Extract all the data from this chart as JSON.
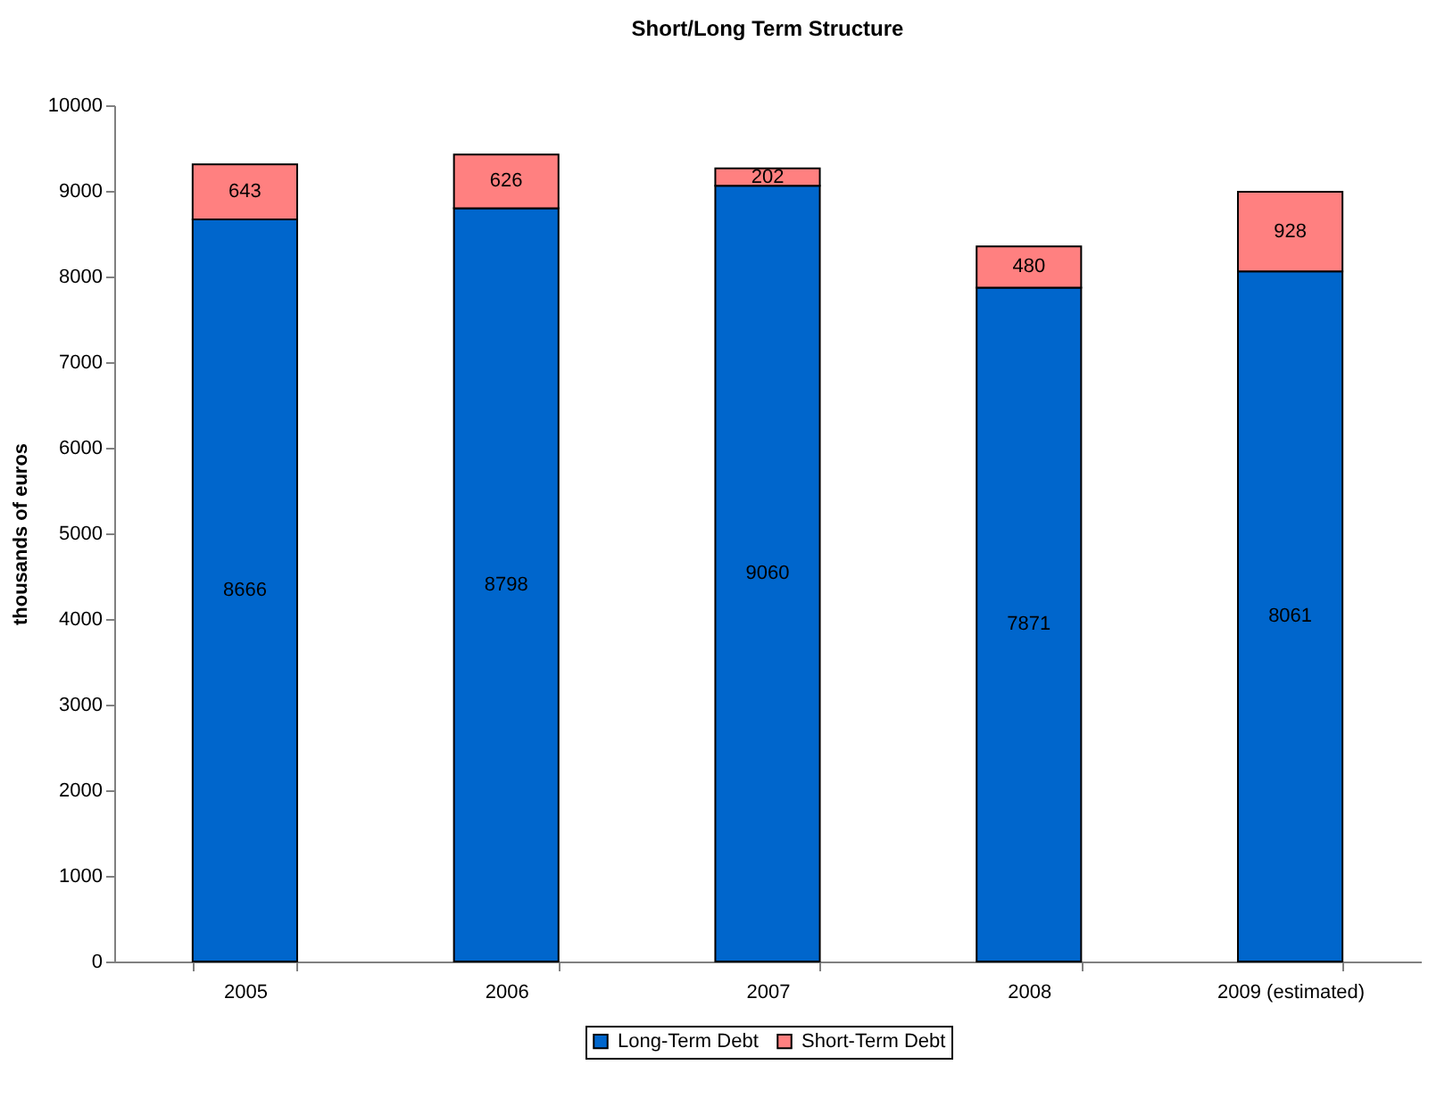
{
  "chart_data": {
    "type": "bar",
    "title": "Short/Long Term Structure",
    "ylabel": "thousands of euros",
    "categories": [
      "2005",
      "2006",
      "2007",
      "2008",
      "2009 (estimated)"
    ],
    "series": [
      {
        "name": "Long-Term Debt",
        "color": "#0066cc",
        "values": [
          8666,
          8798,
          9060,
          7871,
          8061
        ]
      },
      {
        "name": "Short-Term Debt",
        "color": "#ff8080",
        "values": [
          643,
          626,
          202,
          480,
          928
        ]
      }
    ],
    "stacked": true,
    "data_labels": true,
    "legend": "bottom",
    "grid": false,
    "ylim": [
      0,
      10000
    ],
    "yticks": [
      0,
      1000,
      2000,
      3000,
      4000,
      5000,
      6000,
      7000,
      8000,
      9000,
      10000
    ]
  }
}
